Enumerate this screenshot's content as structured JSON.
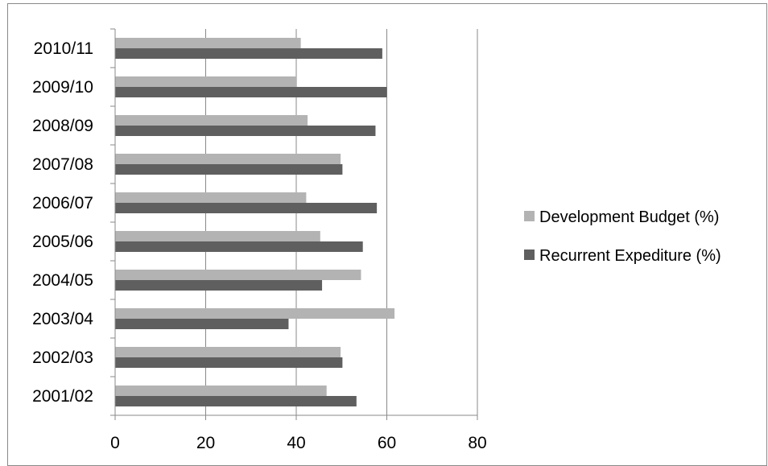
{
  "chart_data": {
    "type": "bar",
    "orientation": "horizontal",
    "categories": [
      "2001/02",
      "2002/03",
      "2003/04",
      "2004/05",
      "2005/06",
      "2006/07",
      "2007/08",
      "2008/09",
      "2009/10",
      "2010/11"
    ],
    "series": [
      {
        "name": "Development Budget (%)",
        "color": "#b3b3b3",
        "values": [
          46.7,
          49.8,
          61.7,
          54.3,
          45.3,
          42.2,
          49.8,
          42.5,
          40.0,
          41.0
        ]
      },
      {
        "name": "Recurrent Expediture (%)",
        "color": "#5f5f5f",
        "values": [
          53.3,
          50.2,
          38.3,
          45.7,
          54.7,
          57.8,
          50.2,
          57.5,
          60.0,
          59.0
        ]
      }
    ],
    "xlim": [
      0,
      80
    ],
    "x_ticks": [
      0,
      20,
      40,
      60,
      80
    ],
    "title": "",
    "xlabel": "",
    "ylabel": "",
    "grid": "vertical major gridlines",
    "legend_position": "right"
  }
}
